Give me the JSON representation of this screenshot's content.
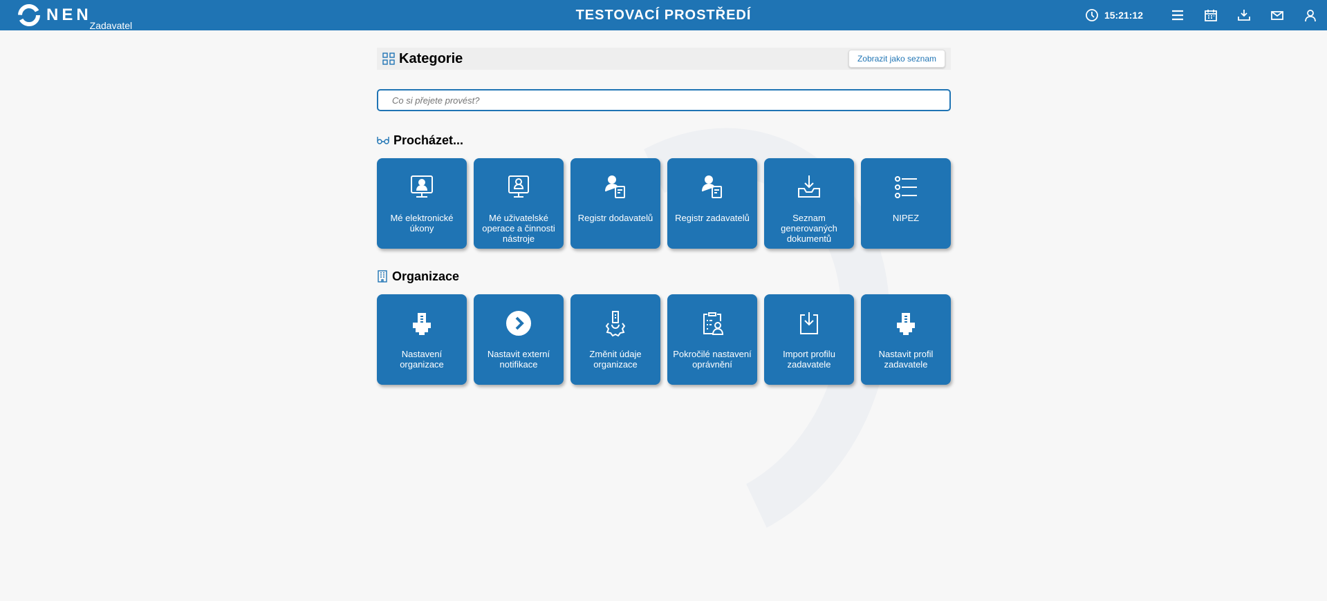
{
  "header": {
    "logo": "NEN",
    "subtitle": "Zadavatel",
    "title": "TESTOVACÍ PROSTŘEDÍ",
    "time": "15:21:12",
    "icons": [
      "menu-icon",
      "calendar-icon",
      "download-icon",
      "mail-icon",
      "user-icon"
    ]
  },
  "kategorie": {
    "title": "Kategorie",
    "list_button": "Zobrazit jako seznam"
  },
  "search": {
    "placeholder": "Co si přejete provést?",
    "value": ""
  },
  "browse": {
    "title": "Procházet...",
    "tiles": [
      {
        "label": "Mé elektronické úkony",
        "icon": "monitor-user-icon"
      },
      {
        "label": "Mé uživatelské operace a činnosti nástroje",
        "icon": "monitor-profile-icon"
      },
      {
        "label": "Registr dodavatelů",
        "icon": "user-document-icon"
      },
      {
        "label": "Registr zadavatelů",
        "icon": "user-document-icon"
      },
      {
        "label": "Seznam generovaných dokumentů",
        "icon": "inbox-download-icon"
      },
      {
        "label": "NIPEZ",
        "icon": "list-icon"
      }
    ]
  },
  "org": {
    "title": "Organizace",
    "tiles": [
      {
        "label": "Nastavení organizace",
        "icon": "building-gear-icon"
      },
      {
        "label": "Nastavit externí notifikace",
        "icon": "chevron-circle-icon"
      },
      {
        "label": "Změnit údaje organizace",
        "icon": "building-gear-outline-icon"
      },
      {
        "label": "Pokročilé nastavení oprávnění",
        "icon": "clipboard-user-icon"
      },
      {
        "label": "Import profilu zadavatele",
        "icon": "import-icon"
      },
      {
        "label": "Nastavit profil zadavatele",
        "icon": "building-gear-icon"
      }
    ]
  },
  "colors": {
    "primary": "#1f74b4",
    "background": "#f7f7f7"
  }
}
